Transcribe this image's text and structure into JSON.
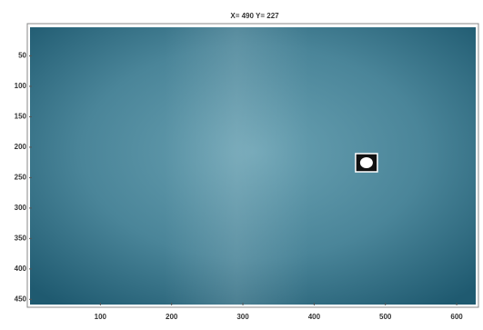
{
  "chart_data": {
    "type": "image",
    "title": "X= 490 Y= 227",
    "x": [
      490
    ],
    "values": [
      227
    ],
    "xlim": [
      0,
      628
    ],
    "ylim": [
      0,
      460
    ],
    "xticks": [
      100,
      200,
      300,
      400,
      500,
      600
    ],
    "yticks": [
      50,
      100,
      150,
      200,
      250,
      300,
      350,
      400,
      450
    ]
  }
}
